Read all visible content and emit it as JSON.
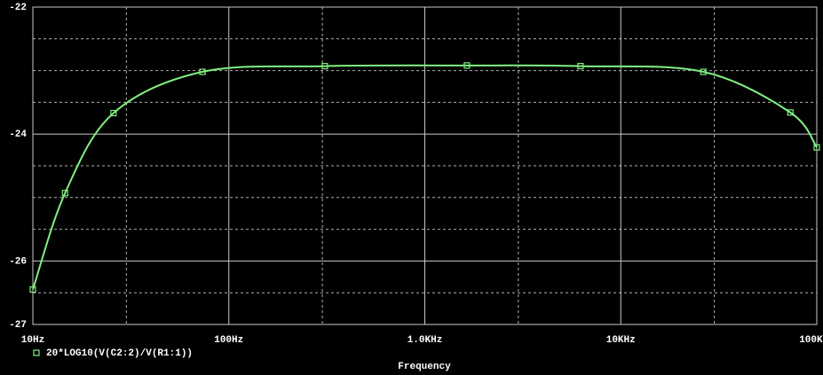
{
  "chart_data": {
    "type": "line",
    "xlabel": "Frequency",
    "xscale": "log",
    "xlim": [
      10,
      100000
    ],
    "ylim": [
      -27,
      -22
    ],
    "xticks": [
      {
        "value": 10,
        "label": "10Hz"
      },
      {
        "value": 100,
        "label": "100Hz"
      },
      {
        "value": 1000,
        "label": "1.0KHz"
      },
      {
        "value": 10000,
        "label": "10KHz"
      },
      {
        "value": 100000,
        "label": "100KHz"
      }
    ],
    "xminor": [
      30,
      300,
      3000,
      30000
    ],
    "yticks": [
      -22,
      -24,
      -26,
      -27
    ],
    "yminor": [
      -22.5,
      -23,
      -23.5,
      -24.5,
      -25,
      -25.5,
      -26.5
    ],
    "grid": true,
    "legend": "bottom-left",
    "series": [
      {
        "name": "20*LOG10(V(C2:2)/V(R1:1))",
        "color": "#80f080",
        "x": [
          10,
          14.6,
          25.8,
          73.4,
          309,
          1640,
          6230,
          26400,
          73300,
          100000
        ],
        "values": [
          -26.45,
          -24.93,
          -23.67,
          -23.02,
          -22.93,
          -22.92,
          -22.93,
          -23.02,
          -23.66,
          -24.21
        ]
      }
    ]
  }
}
